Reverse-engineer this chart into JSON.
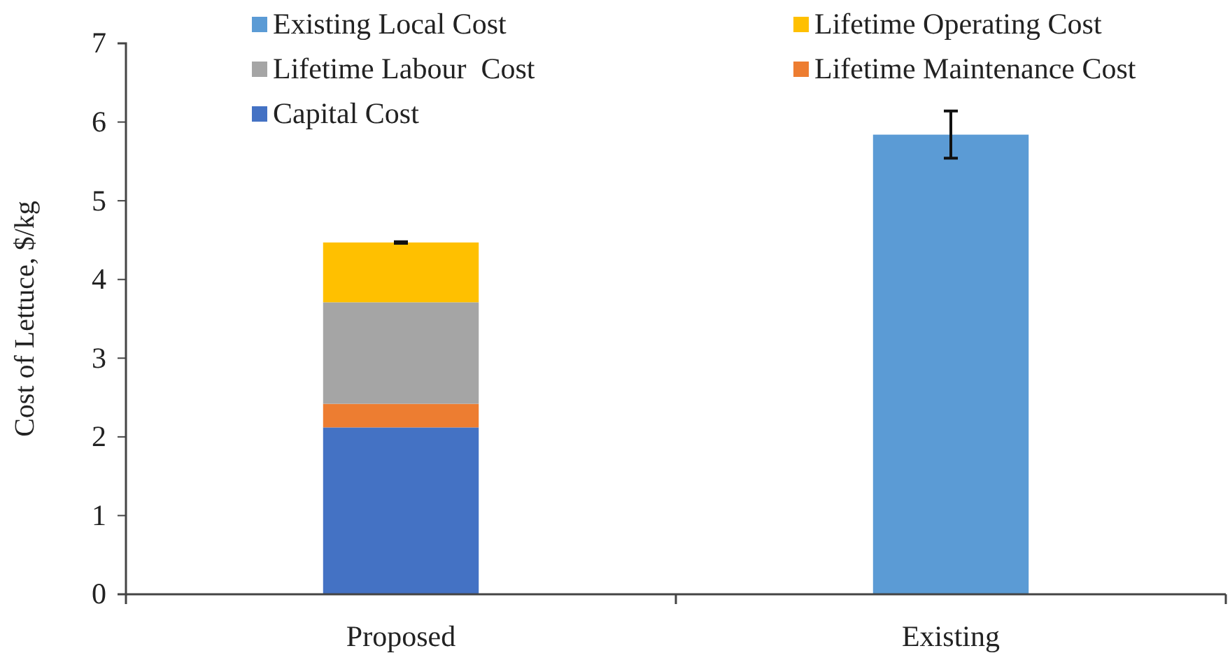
{
  "chart_data": {
    "type": "bar",
    "ylabel": "Cost of Lettuce, $/kg",
    "categories": [
      "Proposed",
      "Existing"
    ],
    "stacked": true,
    "ylim": [
      0,
      7
    ],
    "yticks": [
      0,
      1,
      2,
      3,
      4,
      5,
      6,
      7
    ],
    "legend": "top",
    "grid": false,
    "series": [
      {
        "name": "Capital Cost",
        "color": "#4472c4",
        "values": [
          2.12,
          null
        ]
      },
      {
        "name": "Lifetime Maintenance Cost",
        "color": "#ed7d31",
        "values": [
          0.3,
          null
        ]
      },
      {
        "name": "Lifetime Labour  Cost",
        "color": "#a5a5a5",
        "values": [
          1.29,
          null
        ]
      },
      {
        "name": "Lifetime Operating Cost",
        "color": "#ffc000",
        "values": [
          0.76,
          null
        ],
        "errors": [
          0.01,
          null
        ]
      },
      {
        "name": "Existing Local Cost",
        "color": "#5b9bd5",
        "values": [
          null,
          5.84
        ],
        "errors": [
          null,
          0.3
        ]
      }
    ]
  }
}
